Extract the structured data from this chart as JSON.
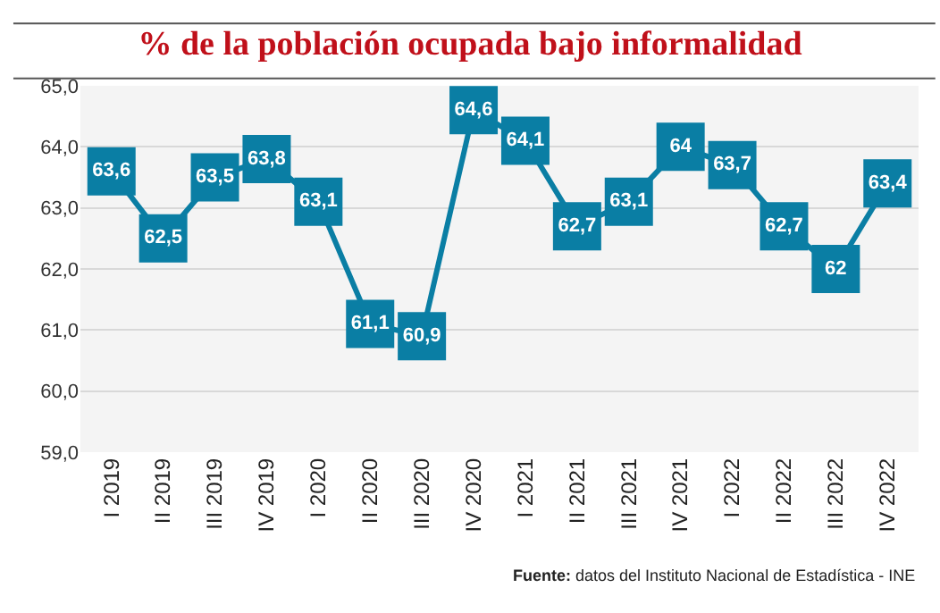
{
  "chart_data": {
    "type": "line",
    "title": "% de la población ocupada bajo informalidad",
    "categories": [
      "I 2019",
      "II 2019",
      "III 2019",
      "IV 2019",
      "I 2020",
      "II 2020",
      "III 2020",
      "IV 2020",
      "I 2021",
      "II 2021",
      "III 2021",
      "IV 2021",
      "I 2022",
      "II 2022",
      "III 2022",
      "IV 2022"
    ],
    "series": [
      {
        "color": "#0a7ea4",
        "values": [
          63.6,
          62.5,
          63.5,
          63.8,
          63.1,
          61.1,
          60.9,
          64.6,
          64.1,
          62.7,
          63.1,
          64,
          63.7,
          62.7,
          62,
          63.4
        ],
        "value_labels": [
          "63,6",
          "62,5",
          "63,5",
          "63,8",
          "63,1",
          "61,1",
          "60,9",
          "64,6",
          "64,1",
          "62,7",
          "63,1",
          "64",
          "63,7",
          "62,7",
          "62",
          "63,4"
        ]
      }
    ],
    "ylim": [
      59,
      65
    ],
    "yticks": [
      {
        "value": 59,
        "label": "59,0"
      },
      {
        "value": 60,
        "label": "60,0"
      },
      {
        "value": 61,
        "label": "61,0"
      },
      {
        "value": 62,
        "label": "62,0"
      },
      {
        "value": 63,
        "label": "63,0"
      },
      {
        "value": 64,
        "label": "64,0"
      },
      {
        "value": 65,
        "label": "65,0"
      }
    ],
    "grid": "y",
    "legend": false,
    "marker": "square",
    "line_style": "solid",
    "annotations": [
      "Fuente: datos del Instituto Nacional de Estadística - INE"
    ]
  }
}
